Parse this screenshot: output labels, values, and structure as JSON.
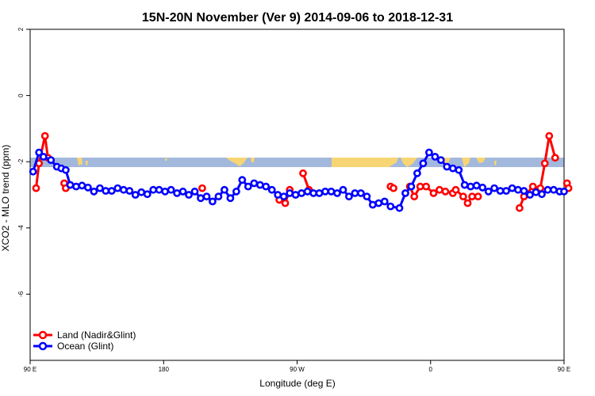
{
  "chart_data": {
    "type": "line",
    "title": "15N-20N November (Ver 9)   2014-09-06 to 2018-12-31",
    "xlabel": "Longitude (deg E)",
    "ylabel": "XCO2 - MLO trend (ppm)",
    "xlim": [
      90,
      450
    ],
    "ylim": [
      -8,
      2
    ],
    "x_ticks": [
      {
        "value": 90,
        "label": "90 E"
      },
      {
        "value": 180,
        "label": "180"
      },
      {
        "value": 270,
        "label": "90 W"
      },
      {
        "value": 360,
        "label": "0"
      },
      {
        "value": 450,
        "label": "90 E"
      },
      {
        "value": 540,
        "label": "180"
      }
    ],
    "y_ticks": [
      {
        "value": 2,
        "label": "2"
      },
      {
        "value": 0,
        "label": "0"
      },
      {
        "value": -2,
        "label": "-2"
      },
      {
        "value": -4,
        "label": "-4"
      },
      {
        "value": -6,
        "label": "-6"
      }
    ],
    "legend_position": "bottom-left",
    "colors": {
      "land": "#ff0000",
      "ocean": "#0000ff",
      "band_ocean": "#a2b8dc",
      "band_land": "#f7d574"
    },
    "series": [
      {
        "name": "Land (Nadir&Glint)",
        "color": "#ff0000",
        "segments": [
          [
            [
              94,
              -2.8
            ],
            [
              96,
              -2.05
            ],
            [
              100,
              -1.22
            ],
            [
              102,
              -1.88
            ]
          ],
          [
            [
              113,
              -2.65
            ],
            [
              114,
              -2.8
            ]
          ],
          [
            [
              206,
              -2.8
            ]
          ],
          [
            [
              258,
              -3.15
            ],
            [
              262,
              -3.25
            ],
            [
              265,
              -2.85
            ]
          ],
          [
            [
              274,
              -2.35
            ],
            [
              278,
              -2.85
            ]
          ],
          [
            [
              333,
              -2.75
            ],
            [
              335,
              -2.8
            ]
          ],
          [
            [
              346,
              -2.75
            ],
            [
              349,
              -3.05
            ],
            [
              353,
              -2.75
            ],
            [
              357,
              -2.75
            ],
            [
              362,
              -2.95
            ],
            [
              366,
              -2.85
            ],
            [
              370,
              -2.9
            ],
            [
              375,
              -2.95
            ],
            [
              377,
              -2.85
            ],
            [
              382,
              -3.05
            ],
            [
              385,
              -3.25
            ],
            [
              388,
              -3.05
            ],
            [
              392,
              -3.05
            ]
          ],
          [
            [
              420,
              -3.4
            ],
            [
              423,
              -3.05
            ],
            [
              429,
              -2.75
            ],
            [
              434,
              -2.8
            ],
            [
              437,
              -2.05
            ],
            [
              440,
              -1.22
            ],
            [
              444,
              -1.88
            ]
          ],
          [
            [
              452,
              -2.65
            ],
            [
              453,
              -2.8
            ]
          ]
        ]
      },
      {
        "name": "Ocean (Glint)",
        "color": "#0000ff",
        "segments": [
          [
            [
              92,
              -2.3
            ],
            [
              96,
              -1.72
            ],
            [
              99,
              -1.85
            ],
            [
              104,
              -1.95
            ],
            [
              108,
              -2.15
            ],
            [
              111,
              -2.2
            ],
            [
              114,
              -2.25
            ],
            [
              117,
              -2.7
            ],
            [
              121,
              -2.75
            ],
            [
              125,
              -2.72
            ],
            [
              129,
              -2.78
            ],
            [
              133,
              -2.9
            ],
            [
              137,
              -2.8
            ],
            [
              141,
              -2.88
            ],
            [
              145,
              -2.88
            ],
            [
              149,
              -2.8
            ],
            [
              153,
              -2.85
            ],
            [
              157,
              -2.88
            ],
            [
              161,
              -3.0
            ],
            [
              165,
              -2.92
            ],
            [
              169,
              -2.98
            ],
            [
              173,
              -2.85
            ],
            [
              177,
              -2.85
            ],
            [
              181,
              -2.9
            ],
            [
              185,
              -2.85
            ],
            [
              189,
              -2.95
            ],
            [
              193,
              -2.9
            ],
            [
              197,
              -3.0
            ],
            [
              201,
              -2.9
            ],
            [
              205,
              -3.1
            ],
            [
              209,
              -3.05
            ],
            [
              213,
              -3.2
            ],
            [
              217,
              -3.05
            ],
            [
              221,
              -2.85
            ],
            [
              225,
              -3.1
            ],
            [
              229,
              -2.9
            ],
            [
              233,
              -2.55
            ],
            [
              237,
              -2.75
            ],
            [
              241,
              -2.65
            ],
            [
              245,
              -2.7
            ],
            [
              249,
              -2.75
            ],
            [
              253,
              -2.85
            ],
            [
              257,
              -3.0
            ],
            [
              261,
              -3.05
            ],
            [
              265,
              -2.95
            ],
            [
              269,
              -3.0
            ],
            [
              273,
              -2.95
            ],
            [
              277,
              -2.9
            ],
            [
              281,
              -2.95
            ],
            [
              285,
              -2.95
            ],
            [
              289,
              -2.9
            ],
            [
              293,
              -2.9
            ],
            [
              297,
              -2.95
            ],
            [
              301,
              -2.85
            ],
            [
              305,
              -3.05
            ],
            [
              309,
              -2.95
            ],
            [
              313,
              -2.95
            ],
            [
              317,
              -3.05
            ],
            [
              321,
              -3.3
            ],
            [
              325,
              -3.25
            ],
            [
              329,
              -3.2
            ],
            [
              333,
              -3.35
            ],
            [
              339,
              -3.4
            ],
            [
              343,
              -2.95
            ],
            [
              347,
              -2.75
            ],
            [
              351,
              -2.35
            ],
            [
              355,
              -2.05
            ],
            [
              359,
              -1.72
            ],
            [
              363,
              -1.85
            ],
            [
              367,
              -1.95
            ],
            [
              371,
              -2.15
            ],
            [
              375,
              -2.2
            ],
            [
              379,
              -2.25
            ],
            [
              383,
              -2.7
            ],
            [
              387,
              -2.75
            ],
            [
              391,
              -2.72
            ],
            [
              395,
              -2.78
            ],
            [
              399,
              -2.9
            ],
            [
              403,
              -2.8
            ],
            [
              407,
              -2.88
            ],
            [
              411,
              -2.88
            ],
            [
              415,
              -2.8
            ],
            [
              419,
              -2.85
            ],
            [
              423,
              -2.88
            ],
            [
              427,
              -3.0
            ],
            [
              431,
              -2.92
            ],
            [
              435,
              -2.98
            ],
            [
              439,
              -2.85
            ],
            [
              443,
              -2.85
            ],
            [
              447,
              -2.9
            ],
            [
              450,
              -2.9
            ]
          ]
        ]
      }
    ]
  }
}
